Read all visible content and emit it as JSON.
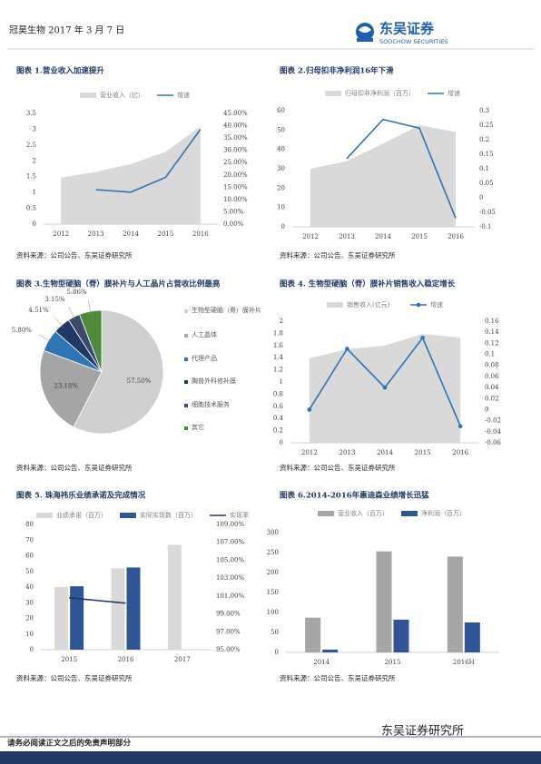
{
  "header": {
    "left": "冠昊生物 2017 年 3 月 7 日",
    "logo_cn": "东吴证券",
    "logo_en": "SOOCHOW SECURITIES"
  },
  "chart_data": [
    {
      "type": "combo",
      "title": "图表 1.营业收入加速提升",
      "source": "资料来源：公司公告、东吴证券研究所",
      "categories": [
        "2012",
        "2013",
        "2014",
        "2015",
        "2016"
      ],
      "series": [
        {
          "name": "营业收入（亿）",
          "type": "area",
          "color": "#d9d9d9",
          "values": [
            1.47,
            1.65,
            1.9,
            2.28,
            3.09
          ]
        },
        {
          "name": "增速",
          "type": "line",
          "axis": "y2",
          "color": "#2e75b6",
          "values": [
            null,
            14,
            13,
            19,
            38.5
          ]
        }
      ],
      "ylim": [
        0,
        3.5
      ],
      "yticks": [
        0,
        0.5,
        1,
        1.5,
        2,
        2.5,
        3,
        3.5
      ],
      "y2lim": [
        0,
        45
      ],
      "y2ticks": [
        {
          "value": 0,
          "label": "0.00%"
        },
        {
          "value": 5,
          "label": "5.00%"
        },
        {
          "value": 10,
          "label": "10.00%"
        },
        {
          "value": 15,
          "label": "15.00%"
        },
        {
          "value": 20,
          "label": "20.00%"
        },
        {
          "value": 25,
          "label": "25.00%"
        },
        {
          "value": 30,
          "label": "30.00%"
        },
        {
          "value": 35,
          "label": "35.00%"
        },
        {
          "value": 40,
          "label": "40.00%"
        },
        {
          "value": 45,
          "label": "45.00%"
        }
      ]
    },
    {
      "type": "combo",
      "title": "图表 2.归母扣非净利润16年下滑",
      "source": "资料来源：公司公告、东吴证券研究所",
      "categories": [
        "2012",
        "2013",
        "2014",
        "2015",
        "2016"
      ],
      "series": [
        {
          "name": "归母扣非净利润（百万）",
          "type": "area",
          "color": "#d9d9d9",
          "values": [
            30,
            34,
            43,
            52.5,
            49
          ]
        },
        {
          "name": "增速",
          "type": "line",
          "axis": "y2",
          "color": "#2e75b6",
          "values": [
            null,
            0.135,
            0.27,
            0.24,
            -0.07
          ]
        }
      ],
      "ylim": [
        0,
        60
      ],
      "yticks": [
        0,
        10,
        20,
        30,
        40,
        50,
        60
      ],
      "y2lim": [
        -0.1,
        0.3
      ],
      "y2ticks": [
        -0.1,
        -0.05,
        0,
        0.05,
        0.1,
        0.15,
        0.2,
        0.25,
        0.3
      ]
    },
    {
      "type": "pie",
      "title": "图表 3.生物型硬脑（脊）膜补片与人工晶片占营收比例最高",
      "source": "资料来源：公司公告、东吴证券研究所",
      "categories": [
        "生物型硬脑（脊）膜补片",
        "人工晶体",
        "代理产品",
        "胸普外科修补膜",
        "细胞技术服务",
        "其它"
      ],
      "values": [
        57.5,
        23.18,
        5.8,
        4.51,
        3.15,
        5.86
      ],
      "value_labels": [
        "57.50%",
        "23.18%",
        "5.80%",
        "4.51%",
        "3.15%",
        "5.86%"
      ],
      "colors": [
        "#cfcfcf",
        "#a5a5a5",
        "#2e75b6",
        "#1f3864",
        "#3b4a6b",
        "#4e8a3a"
      ]
    },
    {
      "type": "combo",
      "title": "图表 4. 生物型硬脑（脊）膜补片销售收入稳定增长",
      "source": "资料来源：公司公告、东吴证券研究所",
      "categories": [
        "2012",
        "2013",
        "2014",
        "2015",
        "2016"
      ],
      "series": [
        {
          "name": "销售收入(亿元)",
          "type": "area",
          "color": "#d9d9d9",
          "values": [
            1.39,
            1.54,
            1.6,
            1.79,
            1.73
          ]
        },
        {
          "name": "增速",
          "type": "line",
          "axis": "y2",
          "color": "#2e75b6",
          "marker": true,
          "values": [
            0,
            0.11,
            0.04,
            0.13,
            -0.03
          ]
        }
      ],
      "ylim": [
        0,
        2
      ],
      "yticks": [
        0,
        0.2,
        0.4,
        0.6,
        0.8,
        1,
        1.2,
        1.4,
        1.6,
        1.8,
        2
      ],
      "y2lim": [
        -0.06,
        0.16
      ],
      "y2ticks": [
        -0.06,
        -0.04,
        -0.02,
        0,
        0.02,
        0.04,
        0.06,
        0.08,
        0.1,
        0.12,
        0.14,
        0.16
      ]
    },
    {
      "type": "combo",
      "title": "图表 5. 珠海祎乐业绩承诺及完成情况",
      "source": "资料来源：公司公告、东吴证券研究所",
      "categories": [
        "2015",
        "2016",
        "2017"
      ],
      "series": [
        {
          "name": "业绩承诺（百万）",
          "type": "bar",
          "color": "#d9d9d9",
          "values": [
            40,
            52,
            67
          ]
        },
        {
          "name": "实际实现数（百万）",
          "type": "bar",
          "color": "#2f5597",
          "values": [
            40.5,
            52.5,
            null
          ]
        },
        {
          "name": "实现率",
          "type": "line",
          "axis": "y2",
          "color": "#1f3864",
          "values": [
            100.8,
            100.2,
            null
          ]
        }
      ],
      "ylim": [
        0,
        80
      ],
      "yticks": [
        0,
        10,
        20,
        30,
        40,
        50,
        60,
        70,
        80
      ],
      "y2lim": [
        95,
        109
      ],
      "y2ticks": [
        {
          "value": 95,
          "label": "95.00%"
        },
        {
          "value": 97,
          "label": "97.00%"
        },
        {
          "value": 99,
          "label": "99.00%"
        },
        {
          "value": 101,
          "label": "101.00%"
        },
        {
          "value": 103,
          "label": "103.00%"
        },
        {
          "value": 105,
          "label": "105.00%"
        },
        {
          "value": 107,
          "label": "107.00%"
        },
        {
          "value": 109,
          "label": "109.00%"
        }
      ]
    },
    {
      "type": "bar",
      "title": "图表 6.2014-2016年惠迪森业绩增长迅猛",
      "source": "资料来源：公司公告、东吴证券研究所",
      "categories": [
        "2014",
        "2015",
        "2016H"
      ],
      "series": [
        {
          "name": "营业收入（百万）",
          "type": "bar",
          "color": "#a6a6a6",
          "values": [
            87,
            253,
            240
          ]
        },
        {
          "name": "净利润（百万）",
          "type": "bar",
          "color": "#2f5597",
          "values": [
            7,
            82,
            75
          ]
        }
      ],
      "ylim": [
        0,
        300
      ],
      "yticks": [
        0,
        50,
        100,
        150,
        200,
        250,
        300
      ]
    }
  ],
  "footer": {
    "disclaimer": "请务必阅读正文之后的免责声明部分",
    "institute": "东吴证券研究所"
  }
}
